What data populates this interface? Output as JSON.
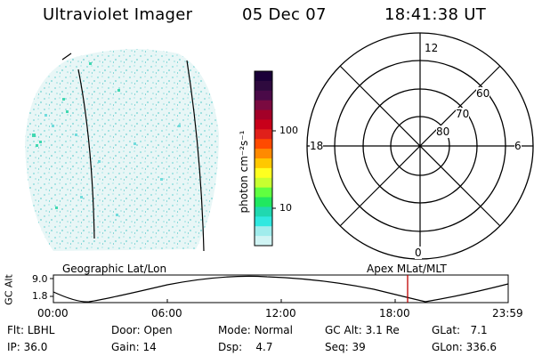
{
  "header": {
    "instrument": "Ultraviolet Imager",
    "date": "05 Dec 07",
    "time": "18:41:38 UT"
  },
  "colorbar": {
    "ticks": [
      "100",
      "10"
    ],
    "unit_label": "photon cm⁻²s⁻¹",
    "colors": [
      "#1a0038",
      "#2e0a3e",
      "#4a0a48",
      "#7a0a40",
      "#a30028",
      "#c8001a",
      "#e0201a",
      "#ff4a00",
      "#ff8a00",
      "#ffc800",
      "#ffff20",
      "#c8ff30",
      "#60ff40",
      "#20e860",
      "#20d8b0",
      "#30e8e0",
      "#a0ecec",
      "#d0f4f4"
    ]
  },
  "polar": {
    "mlt_labels": {
      "top": "12",
      "left": "18",
      "right": "6",
      "bottom": "0"
    },
    "lat_labels": [
      "60",
      "70",
      "80"
    ]
  },
  "track": {
    "left_title": "Geographic Lat/Lon",
    "right_title": "Apex MLat/MLT",
    "y_label": "GC Alt",
    "y_ticks": [
      "9.0",
      "1.8"
    ],
    "x_ticks": [
      "00:00",
      "06:00",
      "12:00",
      "18:00",
      "23:59"
    ],
    "marker_time": "18:41"
  },
  "info": {
    "filter": {
      "label": "Flt:",
      "value": "LBHL"
    },
    "ip": {
      "label": "IP:",
      "value": "36.0"
    },
    "door": {
      "label": "Door:",
      "value": "Open"
    },
    "gain": {
      "label": "Gain:",
      "value": "14"
    },
    "mode": {
      "label": "Mode:",
      "value": "Normal"
    },
    "dsp": {
      "label": "Dsp:",
      "value": "4.7"
    },
    "gcalt": {
      "label": "GC Alt:",
      "value": "3.1 Re"
    },
    "seq": {
      "label": "Seq:",
      "value": "39"
    },
    "glat": {
      "label": "GLat:",
      "value": "7.1"
    },
    "glon": {
      "label": "GLon:",
      "value": "336.6"
    }
  }
}
